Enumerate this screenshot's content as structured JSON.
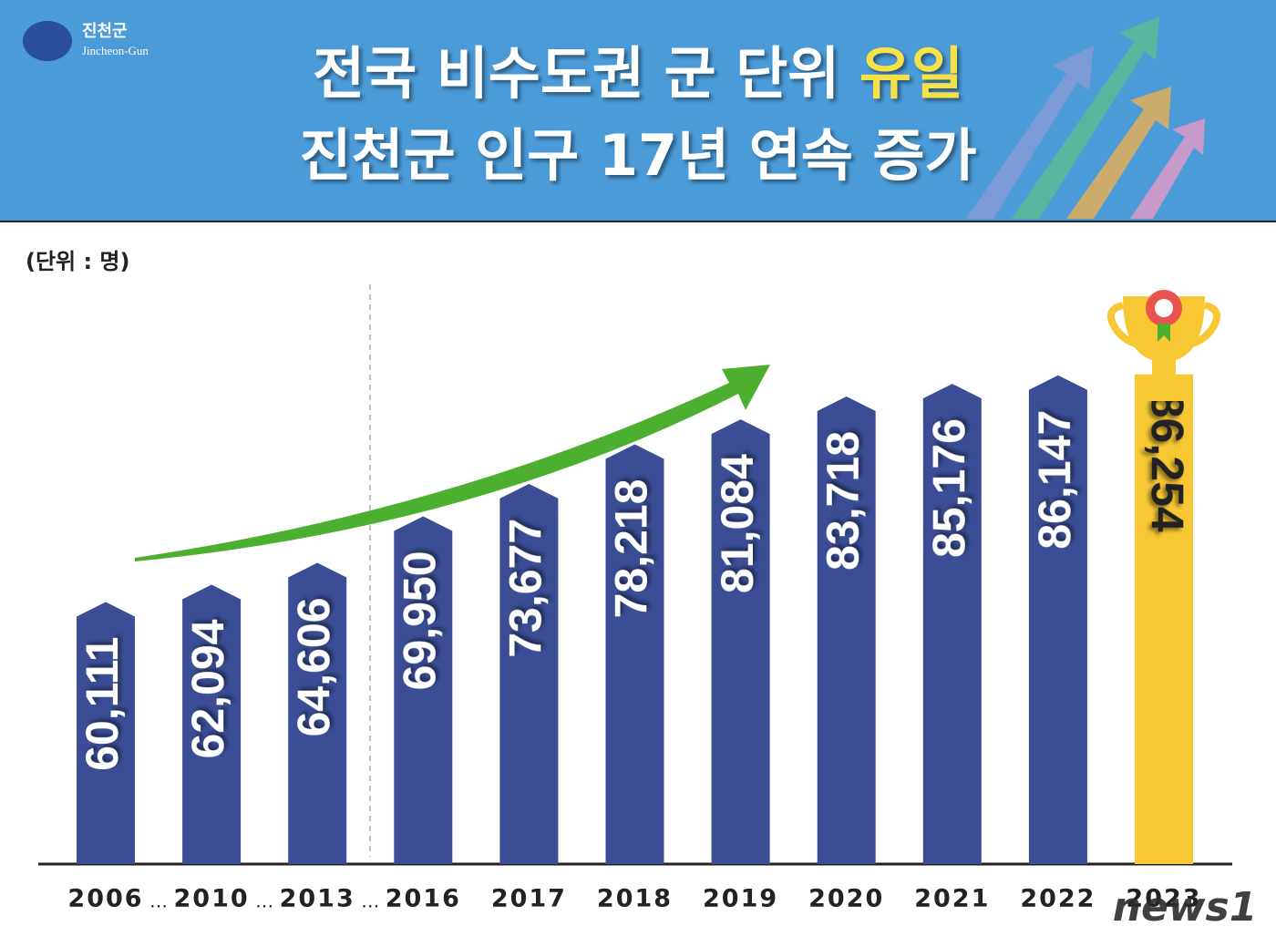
{
  "logo": {
    "name": "진천군",
    "english": "Jincheon-Gun"
  },
  "watermark": "news1",
  "chart_data": {
    "type": "bar",
    "title": {
      "line1": "전국 비수도권 군 단위",
      "highlight": "유일",
      "line2": "진천군 인구 17년 연속 증가"
    },
    "unit_label": "(단위 : 명)",
    "gap_marker": "…",
    "categories": [
      "2006",
      "2010",
      "2013",
      "2016",
      "2017",
      "2018",
      "2019",
      "2020",
      "2021",
      "2022",
      "2023"
    ],
    "values": [
      60111,
      62094,
      64606,
      69950,
      73677,
      78218,
      81084,
      83718,
      85176,
      86147,
      86254
    ],
    "value_labels": [
      "60,111",
      "62,094",
      "64,606",
      "69,950",
      "73,677",
      "78,218",
      "81,084",
      "83,718",
      "85,176",
      "86,147",
      "86,254"
    ],
    "colors": [
      "#3a4d95",
      "#3a4d95",
      "#3a4d95",
      "#3a4d95",
      "#3a4d95",
      "#3a4d95",
      "#3a4d95",
      "#3a4d95",
      "#3a4d95",
      "#3a4d95",
      "#f7c734"
    ],
    "ylim": [
      30000,
      90000
    ]
  }
}
